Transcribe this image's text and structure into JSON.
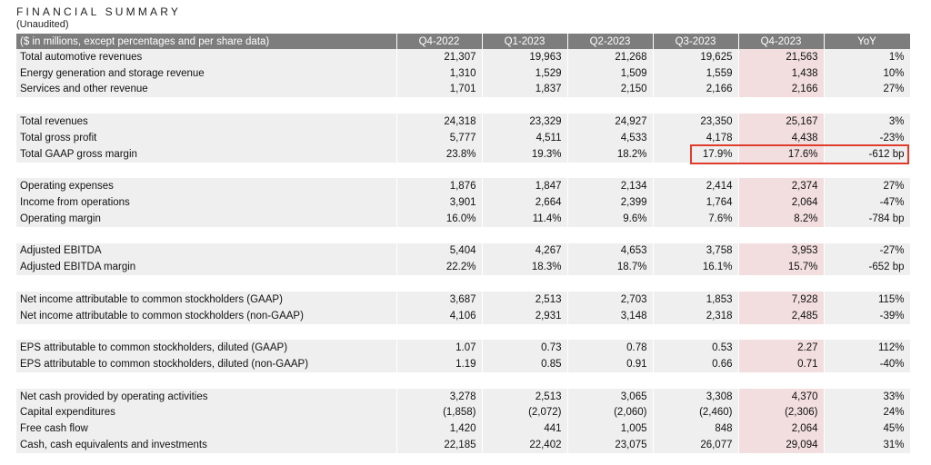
{
  "header": {
    "title": "FINANCIAL SUMMARY",
    "subtitle": "(Unaudited)"
  },
  "table": {
    "columns": [
      "($ in millions, except percentages and per share data)",
      "Q4-2022",
      "Q1-2023",
      "Q2-2023",
      "Q3-2023",
      "Q4-2023",
      "YoY"
    ],
    "rows": [
      {
        "label": "Total automotive revenues",
        "values": [
          "21,307",
          "19,963",
          "21,268",
          "19,625",
          "21,563",
          "1%"
        ]
      },
      {
        "label": "Energy generation and storage revenue",
        "values": [
          "1,310",
          "1,529",
          "1,509",
          "1,559",
          "1,438",
          "10%"
        ]
      },
      {
        "label": "Services and other revenue",
        "values": [
          "1,701",
          "1,837",
          "2,150",
          "2,166",
          "2,166",
          "27%"
        ]
      },
      {
        "spacer": true
      },
      {
        "label": "Total revenues",
        "values": [
          "24,318",
          "23,329",
          "24,927",
          "23,350",
          "25,167",
          "3%"
        ]
      },
      {
        "label": "Total gross profit",
        "values": [
          "5,777",
          "4,511",
          "4,533",
          "4,178",
          "4,438",
          "-23%"
        ]
      },
      {
        "label": "Total GAAP gross margin",
        "values": [
          "23.8%",
          "19.3%",
          "18.2%",
          "17.9%",
          "17.6%",
          "-612 bp"
        ]
      },
      {
        "spacer": true
      },
      {
        "label": "Operating expenses",
        "values": [
          "1,876",
          "1,847",
          "2,134",
          "2,414",
          "2,374",
          "27%"
        ]
      },
      {
        "label": "Income from operations",
        "values": [
          "3,901",
          "2,664",
          "2,399",
          "1,764",
          "2,064",
          "-47%"
        ]
      },
      {
        "label": "Operating margin",
        "values": [
          "16.0%",
          "11.4%",
          "9.6%",
          "7.6%",
          "8.2%",
          "-784 bp"
        ]
      },
      {
        "spacer": true
      },
      {
        "label": "Adjusted EBITDA",
        "values": [
          "5,404",
          "4,267",
          "4,653",
          "3,758",
          "3,953",
          "-27%"
        ]
      },
      {
        "label": "Adjusted EBITDA margin",
        "values": [
          "22.2%",
          "18.3%",
          "18.7%",
          "16.1%",
          "15.7%",
          "-652 bp"
        ]
      },
      {
        "spacer": true
      },
      {
        "label": "Net income attributable to common stockholders (GAAP)",
        "values": [
          "3,687",
          "2,513",
          "2,703",
          "1,853",
          "7,928",
          "115%"
        ]
      },
      {
        "label": "Net income attributable to common stockholders (non-GAAP)",
        "values": [
          "4,106",
          "2,931",
          "3,148",
          "2,318",
          "2,485",
          "-39%"
        ]
      },
      {
        "spacer": true
      },
      {
        "label": "EPS attributable to common stockholders, diluted (GAAP)",
        "values": [
          "1.07",
          "0.73",
          "0.78",
          "0.53",
          "2.27",
          "112%"
        ]
      },
      {
        "label": "EPS attributable to common stockholders, diluted (non-GAAP)",
        "values": [
          "1.19",
          "0.85",
          "0.91",
          "0.66",
          "0.71",
          "-40%"
        ]
      },
      {
        "spacer": true
      },
      {
        "label": "Net cash provided by operating activities",
        "values": [
          "3,278",
          "2,513",
          "3,065",
          "3,308",
          "4,370",
          "33%"
        ]
      },
      {
        "label": "Capital expenditures",
        "values": [
          "(1,858)",
          "(2,072)",
          "(2,060)",
          "(2,460)",
          "(2,306)",
          "24%"
        ]
      },
      {
        "label": "Free cash flow",
        "values": [
          "1,420",
          "441",
          "1,005",
          "848",
          "2,064",
          "45%"
        ]
      },
      {
        "label": "Cash, cash equivalents and investments",
        "values": [
          "22,185",
          "22,402",
          "23,075",
          "26,077",
          "29,094",
          "31%"
        ]
      }
    ]
  },
  "colors": {
    "header_bg": "#7d7d7d",
    "row_bg": "#efefef",
    "highlight_column_bg": "#f2dede",
    "annotation_box": "#e03c2d"
  }
}
